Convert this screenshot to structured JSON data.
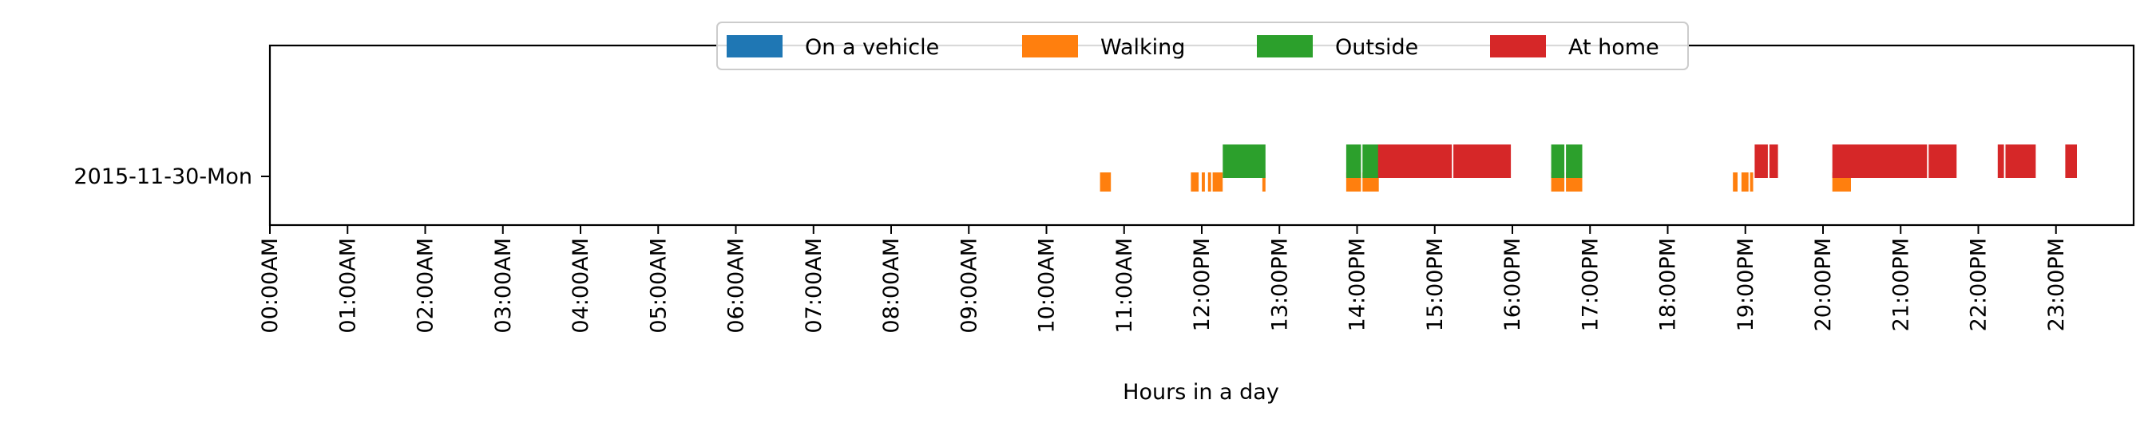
{
  "chart_data": {
    "type": "timeline",
    "xlabel": "Hours in a day",
    "xlim": [
      0,
      24
    ],
    "y_categories": [
      "2015-11-30-Mon"
    ],
    "x_ticks": [
      {
        "value": 0,
        "label": "00:00AM"
      },
      {
        "value": 1,
        "label": "01:00AM"
      },
      {
        "value": 2,
        "label": "02:00AM"
      },
      {
        "value": 3,
        "label": "03:00AM"
      },
      {
        "value": 4,
        "label": "04:00AM"
      },
      {
        "value": 5,
        "label": "05:00AM"
      },
      {
        "value": 6,
        "label": "06:00AM"
      },
      {
        "value": 7,
        "label": "07:00AM"
      },
      {
        "value": 8,
        "label": "08:00AM"
      },
      {
        "value": 9,
        "label": "09:00AM"
      },
      {
        "value": 10,
        "label": "10:00AM"
      },
      {
        "value": 11,
        "label": "11:00AM"
      },
      {
        "value": 12,
        "label": "12:00PM"
      },
      {
        "value": 13,
        "label": "13:00PM"
      },
      {
        "value": 14,
        "label": "14:00PM"
      },
      {
        "value": 15,
        "label": "15:00PM"
      },
      {
        "value": 16,
        "label": "16:00PM"
      },
      {
        "value": 17,
        "label": "17:00PM"
      },
      {
        "value": 18,
        "label": "18:00PM"
      },
      {
        "value": 19,
        "label": "19:00PM"
      },
      {
        "value": 20,
        "label": "20:00PM"
      },
      {
        "value": 21,
        "label": "21:00PM"
      },
      {
        "value": 22,
        "label": "22:00PM"
      },
      {
        "value": 23,
        "label": "23:00PM"
      }
    ],
    "legend_position": "top-center",
    "series": [
      {
        "name": "On a vehicle",
        "color": "#1f77b4",
        "row": "2015-11-30-Mon",
        "intervals": []
      },
      {
        "name": "Walking",
        "color": "#ff7f0e",
        "row": "2015-11-30-Mon",
        "intervals": [
          [
            10.69,
            10.83
          ],
          [
            11.86,
            11.96
          ],
          [
            12.0,
            12.04
          ],
          [
            12.08,
            12.12
          ],
          [
            12.14,
            12.27
          ],
          [
            12.78,
            12.82
          ],
          [
            13.86,
            14.05
          ],
          [
            14.07,
            14.28
          ],
          [
            16.5,
            16.67
          ],
          [
            16.69,
            16.9
          ],
          [
            18.84,
            18.9
          ],
          [
            18.95,
            19.04
          ],
          [
            19.06,
            19.1
          ],
          [
            20.12,
            20.36
          ]
        ]
      },
      {
        "name": "Outside",
        "color": "#2ca02c",
        "row": "2015-11-30-Mon",
        "intervals": [
          [
            12.27,
            12.82
          ],
          [
            13.86,
            14.05
          ],
          [
            14.07,
            14.28
          ],
          [
            16.5,
            16.67
          ],
          [
            16.69,
            16.9
          ]
        ]
      },
      {
        "name": "At home",
        "color": "#d62728",
        "row": "2015-11-30-Mon",
        "intervals": [
          [
            14.27,
            15.22
          ],
          [
            15.24,
            15.98
          ],
          [
            19.12,
            19.29
          ],
          [
            19.31,
            19.42
          ],
          [
            20.12,
            21.34
          ],
          [
            21.36,
            21.72
          ],
          [
            22.25,
            22.33
          ],
          [
            22.35,
            22.74
          ],
          [
            23.12,
            23.27
          ]
        ]
      }
    ]
  }
}
